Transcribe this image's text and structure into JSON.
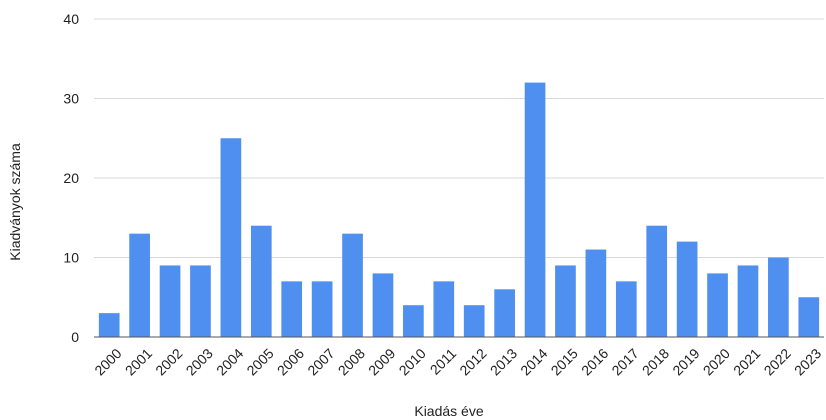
{
  "chart_data": {
    "type": "bar",
    "categories": [
      "2000",
      "2001",
      "2002",
      "2003",
      "2004",
      "2005",
      "2006",
      "2007",
      "2008",
      "2009",
      "2010",
      "2011",
      "2012",
      "2013",
      "2014",
      "2015",
      "2016",
      "2017",
      "2018",
      "2019",
      "2020",
      "2021",
      "2022",
      "2023"
    ],
    "values": [
      3,
      13,
      9,
      9,
      25,
      14,
      7,
      7,
      13,
      8,
      4,
      7,
      4,
      6,
      32,
      9,
      11,
      7,
      14,
      12,
      8,
      9,
      10,
      5
    ],
    "xlabel": "Kiadás éve",
    "ylabel": "Kiadványok száma",
    "ylim": [
      0,
      40
    ],
    "yticks": [
      0,
      10,
      20,
      30,
      40
    ],
    "grid": true,
    "legend": "none",
    "colors": {
      "bar": "#4f8ff0",
      "grid": "#d9d9d9",
      "axis": "#555555",
      "text": "#222222"
    }
  }
}
